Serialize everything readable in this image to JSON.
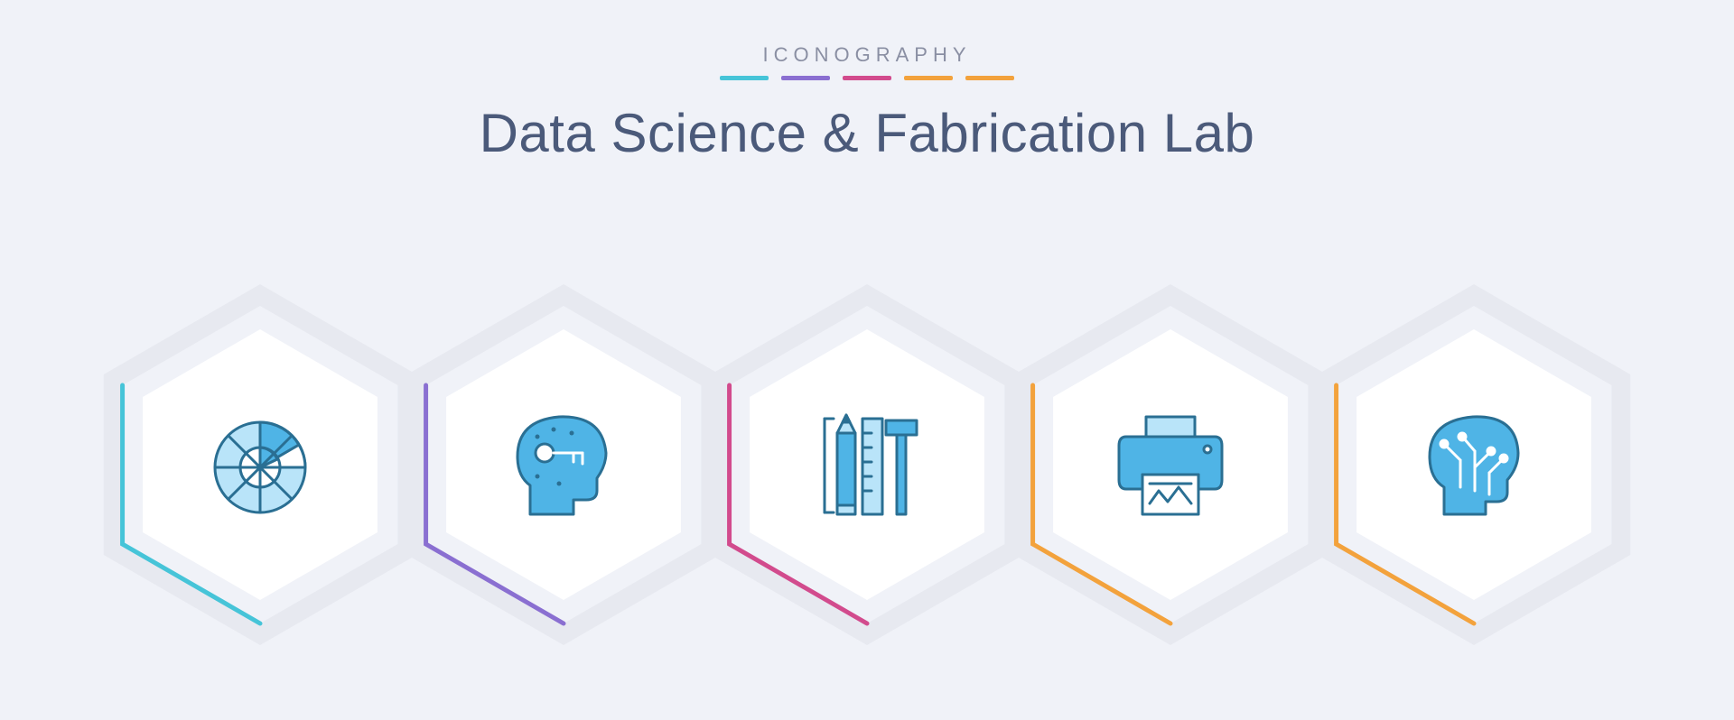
{
  "header": {
    "eyebrow": "ICONOGRAPHY",
    "title": "Data Science & Fabrication Lab"
  },
  "palette": {
    "background": "#f0f2f8",
    "title_color": "#4b5a7a",
    "eyebrow_color": "#8a8fa3",
    "hex_fill": "#ffffff",
    "hex_outer_stroke": "#e7e9f0",
    "icon_primary": "#4fb4e6",
    "icon_secondary": "#b9e4f9",
    "icon_stroke": "#2a6f93"
  },
  "accents": [
    "#46c4d8",
    "#8a6fd1",
    "#d24b8d",
    "#f3a23c",
    "#f3a23c"
  ],
  "hexes": [
    {
      "name": "pie-chart-icon",
      "accent": "#46c4d8"
    },
    {
      "name": "brain-key-icon",
      "accent": "#8a6fd1"
    },
    {
      "name": "drafting-tools-icon",
      "accent": "#d24b8d"
    },
    {
      "name": "printer-icon",
      "accent": "#f3a23c"
    },
    {
      "name": "ai-head-icon",
      "accent": "#f3a23c"
    }
  ]
}
